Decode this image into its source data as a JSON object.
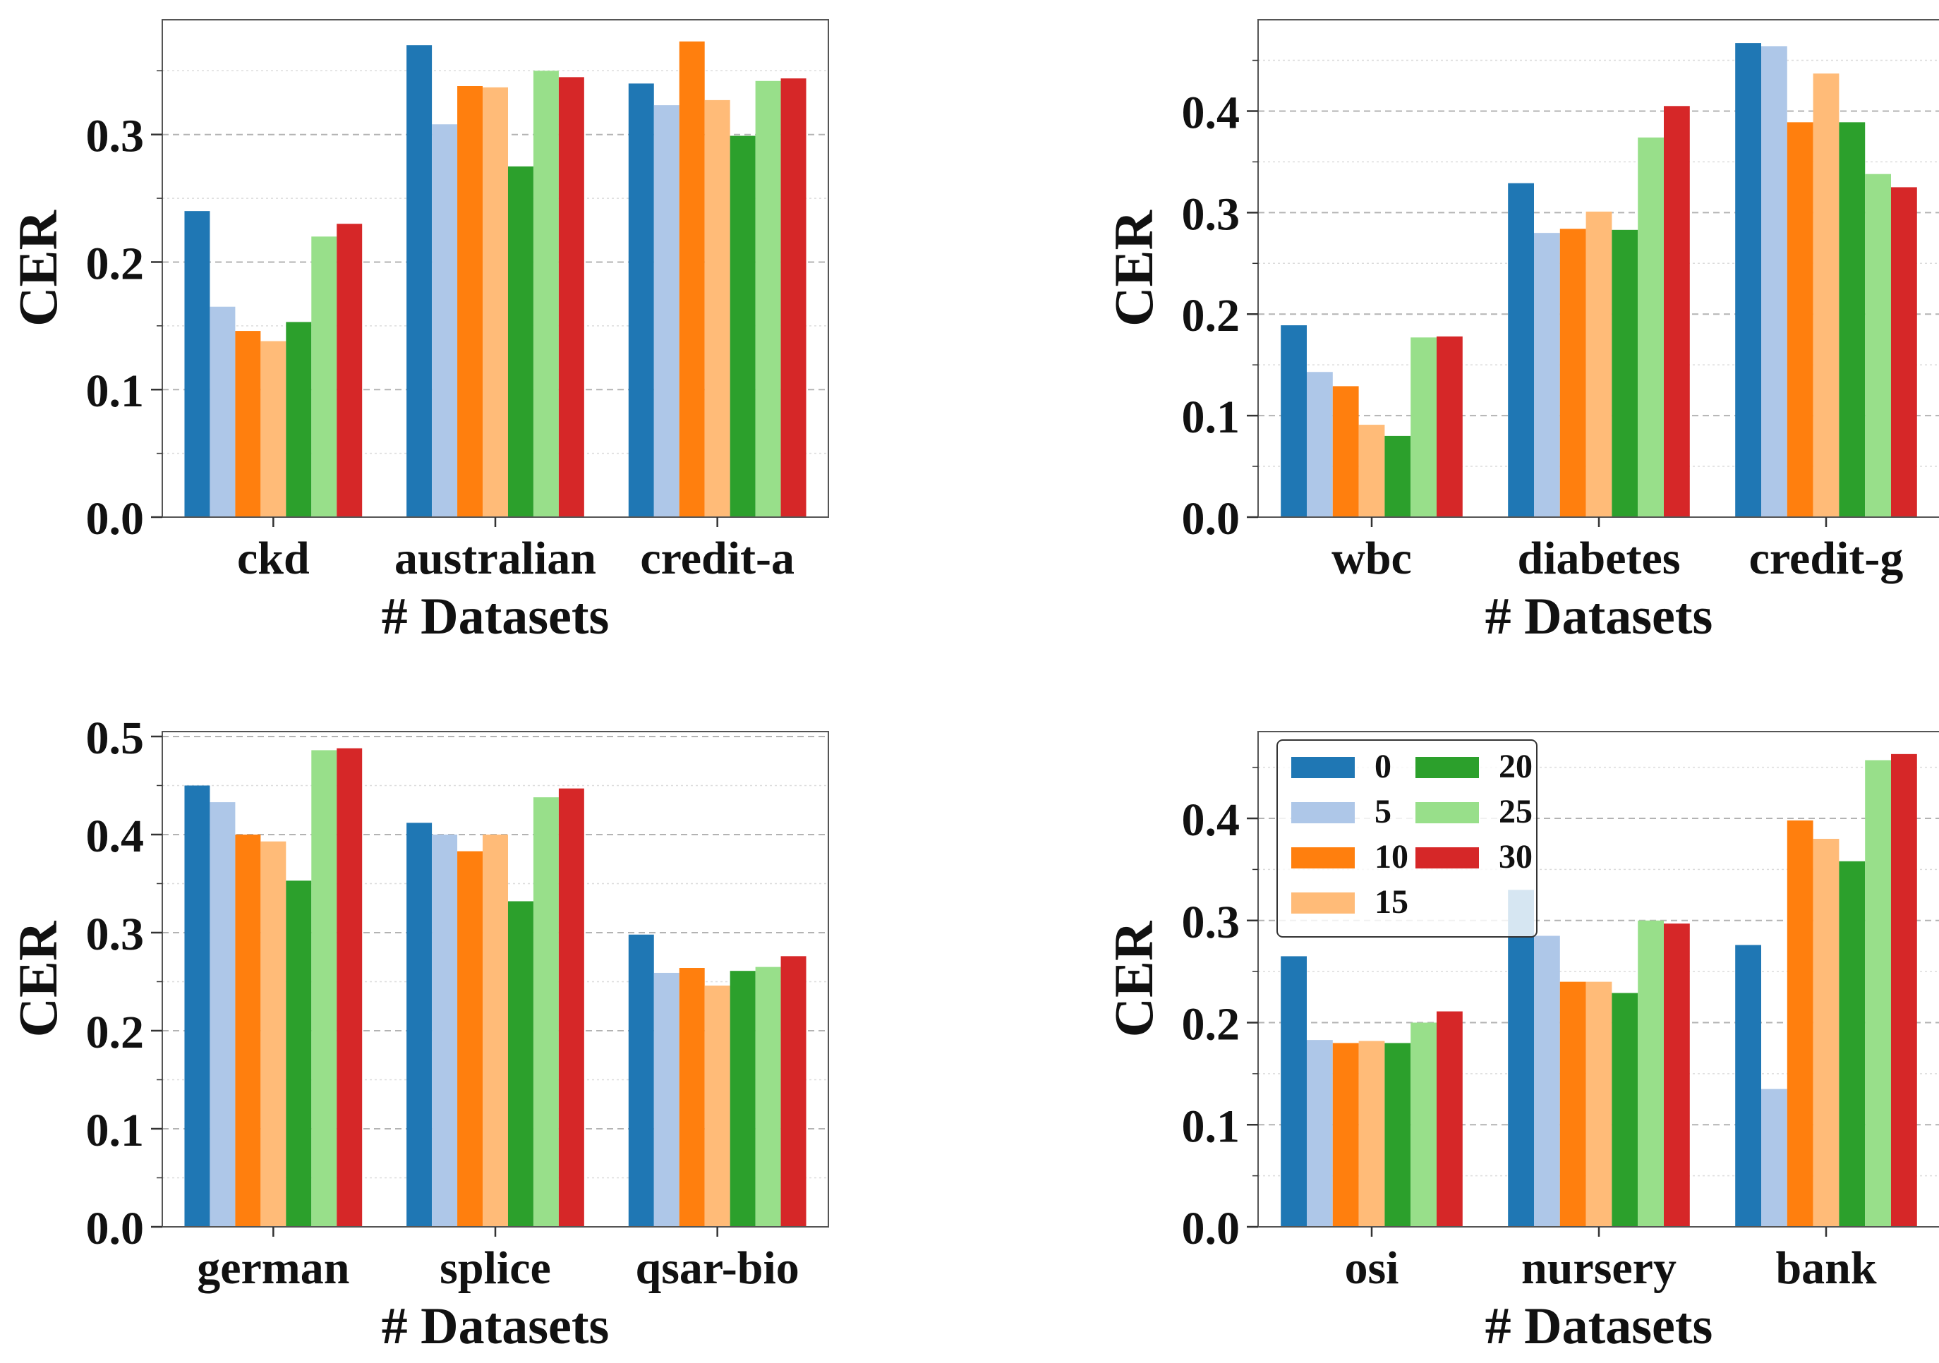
{
  "chart_data": [
    {
      "type": "bar",
      "categories": [
        "ckd",
        "australian",
        "credit-a"
      ],
      "series": [
        {
          "name": "0",
          "values": [
            0.24,
            0.37,
            0.34
          ]
        },
        {
          "name": "5",
          "values": [
            0.165,
            0.308,
            0.323
          ]
        },
        {
          "name": "10",
          "values": [
            0.146,
            0.338,
            0.373
          ]
        },
        {
          "name": "15",
          "values": [
            0.138,
            0.337,
            0.327
          ]
        },
        {
          "name": "20",
          "values": [
            0.153,
            0.275,
            0.299
          ]
        },
        {
          "name": "25",
          "values": [
            0.22,
            0.35,
            0.342
          ]
        },
        {
          "name": "30",
          "values": [
            0.23,
            0.345,
            0.344
          ]
        }
      ],
      "xlabel": "# Datasets",
      "ylabel": "CER",
      "ylim": [
        0,
        0.39
      ],
      "yticks": [
        "0.0",
        "0.1",
        "0.2",
        "0.3"
      ],
      "grid": true
    },
    {
      "type": "bar",
      "categories": [
        "wbc",
        "diabetes",
        "credit-g"
      ],
      "series": [
        {
          "name": "0",
          "values": [
            0.189,
            0.329,
            0.467
          ]
        },
        {
          "name": "5",
          "values": [
            0.143,
            0.28,
            0.464
          ]
        },
        {
          "name": "10",
          "values": [
            0.129,
            0.284,
            0.389
          ]
        },
        {
          "name": "15",
          "values": [
            0.091,
            0.301,
            0.437
          ]
        },
        {
          "name": "20",
          "values": [
            0.08,
            0.283,
            0.389
          ]
        },
        {
          "name": "25",
          "values": [
            0.177,
            0.374,
            0.338
          ]
        },
        {
          "name": "30",
          "values": [
            0.178,
            0.405,
            0.325
          ]
        }
      ],
      "xlabel": "# Datasets",
      "ylabel": "CER",
      "ylim": [
        0,
        0.49
      ],
      "yticks": [
        "0.0",
        "0.1",
        "0.2",
        "0.3",
        "0.4"
      ],
      "grid": true
    },
    {
      "type": "bar",
      "categories": [
        "german",
        "splice",
        "qsar-bio"
      ],
      "series": [
        {
          "name": "0",
          "values": [
            0.45,
            0.412,
            0.298
          ]
        },
        {
          "name": "5",
          "values": [
            0.433,
            0.4,
            0.259
          ]
        },
        {
          "name": "10",
          "values": [
            0.4,
            0.383,
            0.264
          ]
        },
        {
          "name": "15",
          "values": [
            0.393,
            0.4,
            0.246
          ]
        },
        {
          "name": "20",
          "values": [
            0.353,
            0.332,
            0.261
          ]
        },
        {
          "name": "25",
          "values": [
            0.486,
            0.438,
            0.265
          ]
        },
        {
          "name": "30",
          "values": [
            0.488,
            0.447,
            0.276
          ]
        }
      ],
      "xlabel": "# Datasets",
      "ylabel": "CER",
      "ylim": [
        0,
        0.505
      ],
      "yticks": [
        "0.0",
        "0.1",
        "0.2",
        "0.3",
        "0.4",
        "0.5"
      ],
      "grid": true
    },
    {
      "type": "bar",
      "categories": [
        "osi",
        "nursery",
        "bank"
      ],
      "series": [
        {
          "name": "0",
          "values": [
            0.265,
            0.33,
            0.276
          ]
        },
        {
          "name": "5",
          "values": [
            0.183,
            0.285,
            0.135
          ]
        },
        {
          "name": "10",
          "values": [
            0.18,
            0.24,
            0.398
          ]
        },
        {
          "name": "15",
          "values": [
            0.182,
            0.24,
            0.38
          ]
        },
        {
          "name": "20",
          "values": [
            0.18,
            0.229,
            0.358
          ]
        },
        {
          "name": "25",
          "values": [
            0.2,
            0.3,
            0.457
          ]
        },
        {
          "name": "30",
          "values": [
            0.211,
            0.297,
            0.463
          ]
        }
      ],
      "xlabel": "# Datasets",
      "ylabel": "CER",
      "ylim": [
        0,
        0.485
      ],
      "yticks": [
        "0.0",
        "0.1",
        "0.2",
        "0.3",
        "0.4"
      ],
      "grid": true,
      "legend": {
        "placement": "upper-left",
        "columns": 2
      }
    }
  ],
  "colors": [
    "#1f77b4",
    "#aec7e8",
    "#ff7f0e",
    "#ffbb78",
    "#2ca02c",
    "#98df8a",
    "#d62728"
  ]
}
